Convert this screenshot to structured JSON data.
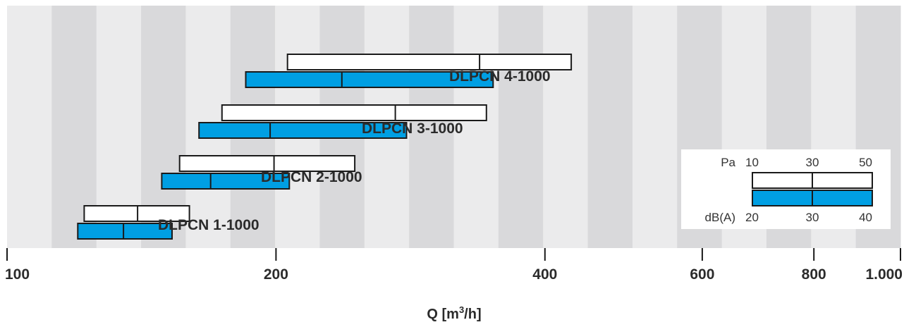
{
  "chart_data": {
    "type": "bar",
    "title": "",
    "xlabel": {
      "prefix": "Q [m",
      "sup": "3",
      "suffix": "/h]"
    },
    "xscale": "log",
    "xlim": [
      100,
      1000
    ],
    "x_ticks": [
      {
        "value": 100,
        "label": "100"
      },
      {
        "value": 200,
        "label": "200"
      },
      {
        "value": 400,
        "label": "400"
      },
      {
        "value": 600,
        "label": "600"
      },
      {
        "value": 800,
        "label": "800"
      },
      {
        "value": 1000,
        "label": "1.000"
      }
    ],
    "products": [
      {
        "name": "DLPCN 1-1000",
        "pa": [
          122,
          140,
          160
        ],
        "dba": [
          120,
          135,
          153
        ]
      },
      {
        "name": "DLPCN 2-1000",
        "pa": [
          156,
          199,
          245
        ],
        "dba": [
          149,
          169,
          207
        ]
      },
      {
        "name": "DLPCN 3-1000",
        "pa": [
          174,
          272,
          344
        ],
        "dba": [
          164,
          197,
          280
        ]
      },
      {
        "name": "DLPCN 4-1000",
        "pa": [
          206,
          338,
          428
        ],
        "dba": [
          185,
          237,
          350
        ]
      }
    ],
    "legend": {
      "position": "right",
      "pa_label": "Pa",
      "pa_values": [
        "10",
        "30",
        "50"
      ],
      "dba_label": "dB(A)",
      "dba_values": [
        "20",
        "30",
        "40"
      ]
    }
  },
  "colors": {
    "band_light": "#ebebec",
    "band_dark": "#d9d9db",
    "bar_blue": "#009fe3",
    "bar_white": "#ffffff",
    "outline": "#1a1a1a",
    "text": "#2b2b2b"
  }
}
